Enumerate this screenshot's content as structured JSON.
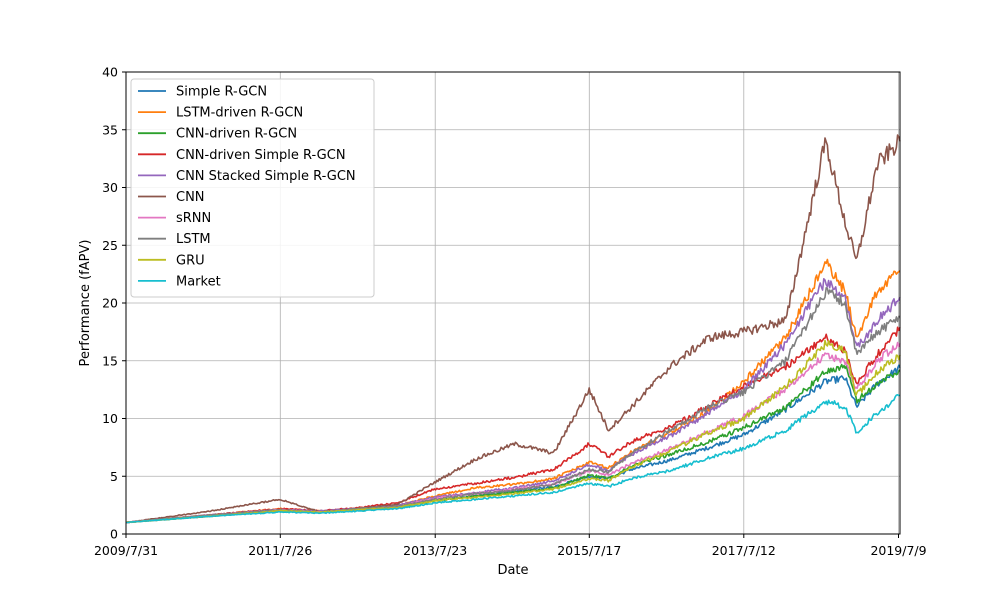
{
  "chart_data": {
    "type": "line",
    "title": "",
    "xlabel": "Date",
    "ylabel": "Performance (fAPV)",
    "ylim": [
      0,
      40
    ],
    "yticks": [
      0,
      5,
      10,
      15,
      20,
      25,
      30,
      35,
      40
    ],
    "xlim": [
      "2009/7/31",
      "2019/7/16"
    ],
    "xticks": [
      "2009/7/31",
      "2011/7/26",
      "2013/7/23",
      "2015/7/17",
      "2017/7/12",
      "2019/7/9"
    ],
    "grid": true,
    "legend_position": "top-left",
    "x": [
      "2009/7/31",
      "2010/7/31",
      "2011/7/26",
      "2012/1/31",
      "2012/7/31",
      "2013/1/31",
      "2013/7/23",
      "2014/1/31",
      "2014/7/31",
      "2015/1/31",
      "2015/7/17",
      "2015/10/15",
      "2016/1/31",
      "2016/7/31",
      "2017/1/31",
      "2017/7/12",
      "2018/1/26",
      "2018/7/31",
      "2018/10/31",
      "2018/12/24",
      "2019/3/31",
      "2019/7/16"
    ],
    "series": [
      {
        "name": "Simple R-GCN",
        "color": "#1f77b4",
        "values": [
          1.0,
          1.5,
          2.0,
          1.9,
          2.1,
          2.3,
          2.9,
          3.3,
          3.7,
          4.1,
          5.0,
          4.8,
          5.6,
          6.4,
          7.5,
          8.6,
          10.8,
          13.2,
          13.5,
          11.0,
          13.0,
          14.4
        ]
      },
      {
        "name": "LSTM-driven R-GCN",
        "color": "#ff7f0e",
        "values": [
          1.0,
          1.6,
          2.2,
          2.0,
          2.2,
          2.5,
          3.3,
          4.0,
          4.3,
          4.8,
          6.2,
          5.7,
          7.1,
          8.8,
          10.7,
          13.2,
          17.0,
          23.5,
          21.0,
          17.0,
          21.0,
          22.8
        ]
      },
      {
        "name": "CNN-driven R-GCN",
        "color": "#2ca02c",
        "values": [
          1.0,
          1.5,
          2.1,
          1.9,
          2.1,
          2.3,
          2.9,
          3.3,
          3.6,
          4.0,
          5.1,
          4.8,
          5.9,
          6.9,
          8.0,
          9.2,
          11.0,
          14.0,
          14.6,
          11.5,
          13.0,
          14.2
        ]
      },
      {
        "name": "CNN-driven Simple R-GCN",
        "color": "#d62728",
        "values": [
          1.0,
          1.6,
          2.2,
          2.0,
          2.3,
          2.7,
          3.9,
          4.4,
          4.9,
          5.6,
          7.8,
          6.7,
          8.0,
          9.3,
          11.1,
          12.8,
          14.5,
          17.0,
          15.8,
          13.0,
          15.5,
          17.9
        ]
      },
      {
        "name": "CNN Stacked Simple R-GCN",
        "color": "#9467bd",
        "values": [
          1.0,
          1.6,
          2.1,
          2.0,
          2.2,
          2.5,
          3.2,
          3.6,
          4.0,
          4.6,
          6.0,
          5.5,
          6.9,
          8.5,
          10.5,
          12.5,
          16.5,
          22.0,
          20.5,
          16.0,
          18.5,
          20.5
        ]
      },
      {
        "name": "CNN",
        "color": "#8c564b",
        "values": [
          1.0,
          1.9,
          3.0,
          1.9,
          2.2,
          2.6,
          4.5,
          6.5,
          7.8,
          7.0,
          12.5,
          9.0,
          11.0,
          14.5,
          17.0,
          17.5,
          18.5,
          34.0,
          27.0,
          23.5,
          32.0,
          34.0
        ]
      },
      {
        "name": "sRNN",
        "color": "#e377c2",
        "values": [
          1.0,
          1.6,
          2.1,
          1.9,
          2.1,
          2.4,
          3.1,
          3.5,
          3.9,
          4.3,
          5.5,
          5.1,
          6.1,
          7.4,
          8.9,
          10.2,
          12.6,
          15.5,
          15.0,
          12.5,
          15.0,
          16.5
        ]
      },
      {
        "name": "LSTM",
        "color": "#7f7f7f",
        "values": [
          1.0,
          1.6,
          2.1,
          1.9,
          2.2,
          2.4,
          3.0,
          3.5,
          3.8,
          4.3,
          5.6,
          5.4,
          7.0,
          9.0,
          11.0,
          12.3,
          15.0,
          21.0,
          20.0,
          15.5,
          17.5,
          18.8
        ]
      },
      {
        "name": "GRU",
        "color": "#bcbd22",
        "values": [
          1.0,
          1.5,
          2.0,
          1.9,
          2.1,
          2.3,
          2.9,
          3.2,
          3.5,
          3.9,
          4.8,
          4.6,
          5.8,
          7.2,
          8.8,
          10.0,
          12.8,
          16.5,
          15.8,
          12.0,
          14.0,
          15.5
        ]
      },
      {
        "name": "Market",
        "color": "#17becf",
        "values": [
          1.0,
          1.5,
          1.9,
          1.8,
          2.0,
          2.2,
          2.7,
          3.0,
          3.3,
          3.6,
          4.4,
          4.1,
          4.8,
          5.5,
          6.6,
          7.4,
          9.0,
          11.5,
          11.0,
          8.8,
          10.5,
          12.0
        ]
      }
    ]
  }
}
